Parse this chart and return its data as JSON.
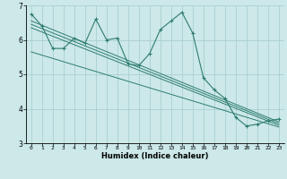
{
  "xlabel": "Humidex (Indice chaleur)",
  "bg_color": "#cce8e8",
  "line_color": "#2e7d6e",
  "grid_color": "#aacfcf",
  "xlim": [
    -0.5,
    23.5
  ],
  "ylim": [
    3,
    7
  ],
  "xticks": [
    0,
    1,
    2,
    3,
    4,
    5,
    6,
    7,
    8,
    9,
    10,
    11,
    12,
    13,
    14,
    15,
    16,
    17,
    18,
    19,
    20,
    21,
    22,
    23
  ],
  "yticks": [
    3,
    4,
    5,
    6,
    7
  ],
  "main_x": [
    0,
    1,
    2,
    3,
    4,
    5,
    6,
    7,
    8,
    9,
    10,
    11,
    12,
    13,
    14,
    15,
    16,
    17,
    18,
    19,
    20,
    21,
    22,
    23
  ],
  "main_y": [
    6.75,
    6.4,
    5.75,
    5.75,
    6.05,
    5.9,
    6.6,
    6.0,
    6.05,
    5.3,
    5.25,
    5.6,
    6.3,
    6.55,
    6.8,
    6.2,
    4.9,
    4.55,
    4.3,
    3.75,
    3.5,
    3.55,
    3.65,
    3.7
  ],
  "line1_x": [
    0,
    23
  ],
  "line1_y": [
    6.55,
    3.62
  ],
  "line2_x": [
    0,
    23
  ],
  "line2_y": [
    6.45,
    3.57
  ],
  "line3_x": [
    0,
    23
  ],
  "line3_y": [
    6.35,
    3.52
  ],
  "line4_x": [
    0,
    23
  ],
  "line4_y": [
    5.65,
    3.47
  ]
}
